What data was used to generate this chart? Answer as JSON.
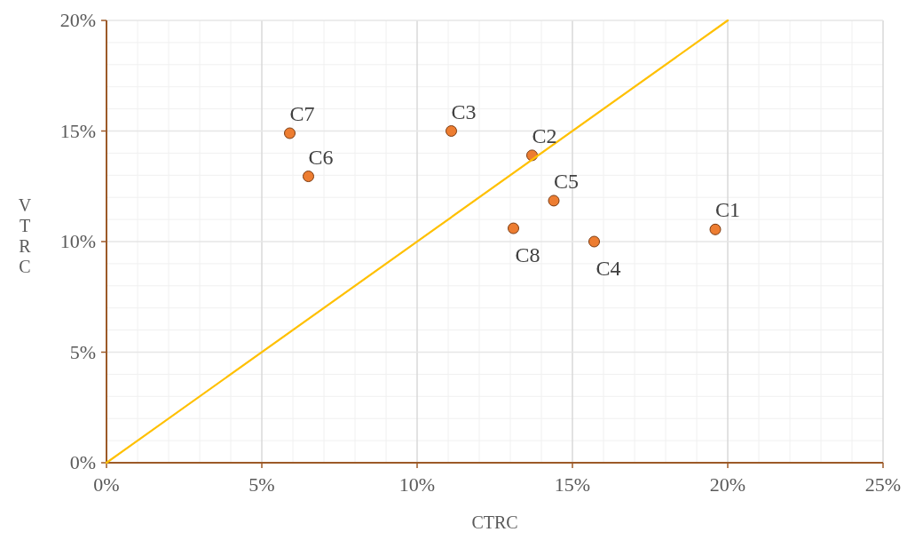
{
  "chart_data": {
    "type": "scatter",
    "xlabel": "CTRC",
    "ylabel": "VTRC",
    "xlim": [
      0,
      25
    ],
    "ylim": [
      0,
      20
    ],
    "xticks": [
      {
        "value": 0,
        "label": "0%"
      },
      {
        "value": 5,
        "label": "5%"
      },
      {
        "value": 10,
        "label": "10%"
      },
      {
        "value": 15,
        "label": "15%"
      },
      {
        "value": 20,
        "label": "20%"
      },
      {
        "value": 25,
        "label": "25%"
      }
    ],
    "yticks": [
      {
        "value": 0,
        "label": "0%"
      },
      {
        "value": 5,
        "label": "5%"
      },
      {
        "value": 10,
        "label": "10%"
      },
      {
        "value": 15,
        "label": "15%"
      },
      {
        "value": 20,
        "label": "20%"
      }
    ],
    "grid": true,
    "marker": "circle",
    "series": [
      {
        "color": "#ed7d31",
        "x": [
          19.6,
          13.7,
          11.1,
          15.7,
          14.4,
          6.5,
          5.9,
          13.1
        ],
        "values": [
          10.55,
          13.9,
          15.0,
          10.0,
          11.85,
          12.95,
          14.9,
          10.6
        ]
      },
      {
        "type": "line",
        "color": "#ffc000",
        "x": [
          0,
          20
        ],
        "values": [
          0,
          20
        ],
        "marker": "none",
        "line_style": "solid"
      }
    ],
    "annotations": [
      {
        "text": "C1",
        "x": 19.6,
        "y": 10.55
      },
      {
        "text": "C2",
        "x": 13.7,
        "y": 13.9
      },
      {
        "text": "C3",
        "x": 11.1,
        "y": 15.0
      },
      {
        "text": "C4",
        "x": 15.7,
        "y": 10.0
      },
      {
        "text": "C5",
        "x": 14.4,
        "y": 11.85
      },
      {
        "text": "C6",
        "x": 6.5,
        "y": 12.95
      },
      {
        "text": "C7",
        "x": 5.9,
        "y": 14.9
      },
      {
        "text": "C8",
        "x": 13.1,
        "y": 10.6
      }
    ]
  }
}
